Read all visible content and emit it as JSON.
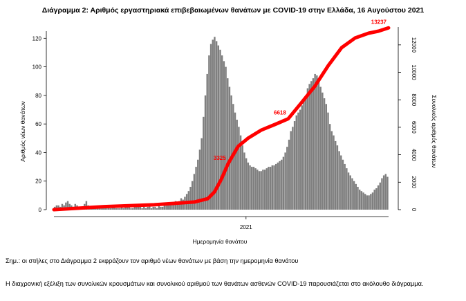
{
  "chart_data": {
    "type": "bar+line",
    "title": "Διάγραμμα 2: Αριθμός εργαστηριακά επιβεβαιωμένων θανάτων με COVID-19 στην Ελλάδα, 16 Αυγούστου 2021",
    "xlabel": "Ημερομηνία θανάτου",
    "ylabel_left": "Αριθμός νέων θανάτων",
    "ylabel_right": "Συνολικός αριθμός θανάτων",
    "x_tick_labels": [
      "2021"
    ],
    "ylim_left": [
      0,
      125
    ],
    "y_ticks_left": [
      0,
      20,
      40,
      60,
      80,
      100,
      120
    ],
    "ylim_right": [
      0,
      13000
    ],
    "y_ticks_right": [
      0,
      2000,
      4000,
      6000,
      8000,
      10000,
      12000
    ],
    "bar_color": "#7f7f7f",
    "line_color": "#ff0000",
    "daily_deaths": [
      2,
      3,
      3,
      2,
      4,
      3,
      5,
      6,
      4,
      3,
      2,
      4,
      3,
      2,
      1,
      2,
      4,
      6,
      3,
      2,
      1,
      2,
      1,
      1,
      2,
      1,
      3,
      2,
      1,
      2,
      1,
      2,
      2,
      1,
      1,
      1,
      2,
      1,
      2,
      2,
      3,
      1,
      1,
      2,
      3,
      2,
      2,
      1,
      2,
      1,
      2,
      3,
      1,
      2,
      2,
      1,
      4,
      2,
      2,
      3,
      4,
      3,
      5,
      4,
      4,
      6,
      5,
      6,
      8,
      7,
      9,
      11,
      13,
      16,
      20,
      25,
      30,
      35,
      42,
      50,
      65,
      80,
      95,
      108,
      116,
      119,
      121,
      118,
      115,
      112,
      108,
      104,
      100,
      92,
      86,
      80,
      74,
      68,
      63,
      58,
      52,
      45,
      40,
      36,
      33,
      31,
      30,
      30,
      29,
      28,
      27,
      27,
      28,
      28,
      29,
      30,
      30,
      31,
      31,
      32,
      33,
      34,
      35,
      37,
      40,
      44,
      49,
      55,
      58,
      62,
      66,
      68,
      70,
      73,
      77,
      80,
      85,
      88,
      90,
      92,
      95,
      94,
      90,
      86,
      82,
      78,
      74,
      68,
      60,
      55,
      52,
      48,
      45,
      41,
      38,
      35,
      32,
      29,
      26,
      24,
      22,
      20,
      18,
      16,
      14,
      13,
      12,
      11,
      10,
      10,
      11,
      12,
      14,
      15,
      17,
      19,
      22,
      24,
      25,
      23
    ],
    "cumulative_labels": [
      {
        "value": 3325,
        "text": "3325"
      },
      {
        "value": 6618,
        "text": "6618"
      },
      {
        "value": 13237,
        "text": "13237"
      }
    ],
    "cumulative_series": [
      {
        "t": 0.0,
        "value": 0
      },
      {
        "t": 0.15,
        "value": 220
      },
      {
        "t": 0.3,
        "value": 360
      },
      {
        "t": 0.42,
        "value": 560
      },
      {
        "t": 0.46,
        "value": 800
      },
      {
        "t": 0.48,
        "value": 1300
      },
      {
        "t": 0.5,
        "value": 2200
      },
      {
        "t": 0.52,
        "value": 3325
      },
      {
        "t": 0.55,
        "value": 4600
      },
      {
        "t": 0.58,
        "value": 5200
      },
      {
        "t": 0.62,
        "value": 5800
      },
      {
        "t": 0.66,
        "value": 6200
      },
      {
        "t": 0.7,
        "value": 6618
      },
      {
        "t": 0.74,
        "value": 7800
      },
      {
        "t": 0.78,
        "value": 9000
      },
      {
        "t": 0.82,
        "value": 10500
      },
      {
        "t": 0.86,
        "value": 11800
      },
      {
        "t": 0.9,
        "value": 12500
      },
      {
        "t": 0.94,
        "value": 12850
      },
      {
        "t": 0.97,
        "value": 13000
      },
      {
        "t": 1.0,
        "value": 13237
      }
    ]
  },
  "captions": {
    "note": "Σημ.: οι στήλες στο Διάγραμμα 2 εκφράζουν τον αριθμό νέων θανάτων με βάση την ημερομηνία θανάτου",
    "paragraph": "Η διαχρονική εξέλιξη των συνολικών κρουσμάτων και συνολικού αριθμού των θανάτων ασθενών COVID-19 παρουσιάζεται στο ακόλουθο διάγραμμα."
  }
}
